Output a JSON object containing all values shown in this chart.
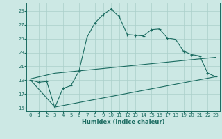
{
  "xlabel": "Humidex (Indice chaleur)",
  "xlim": [
    -0.5,
    23.5
  ],
  "ylim": [
    14.5,
    30.2
  ],
  "xticks": [
    0,
    1,
    2,
    3,
    4,
    5,
    6,
    7,
    8,
    9,
    10,
    11,
    12,
    13,
    14,
    15,
    16,
    17,
    18,
    19,
    20,
    21,
    22,
    23
  ],
  "yticks": [
    15,
    17,
    19,
    21,
    23,
    25,
    27,
    29
  ],
  "bg_color": "#cce8e4",
  "line_color": "#1a6b60",
  "grid_color": "#aacfca",
  "line1_x": [
    0,
    1,
    2,
    3,
    4,
    5,
    6,
    7,
    8,
    9,
    10,
    11,
    12,
    13,
    14,
    15,
    16,
    17,
    18,
    19,
    20,
    21,
    22,
    23
  ],
  "line1_y": [
    19.0,
    18.7,
    18.8,
    15.0,
    17.8,
    18.2,
    20.3,
    25.2,
    27.3,
    28.5,
    29.3,
    28.2,
    25.6,
    25.5,
    25.4,
    26.3,
    26.4,
    25.1,
    24.9,
    23.2,
    22.7,
    22.5,
    20.0,
    19.5
  ],
  "line2_x": [
    0,
    3,
    23
  ],
  "line2_y": [
    19.2,
    20.0,
    22.3
  ],
  "line3_x": [
    0,
    3,
    23
  ],
  "line3_y": [
    19.0,
    15.1,
    19.5
  ]
}
